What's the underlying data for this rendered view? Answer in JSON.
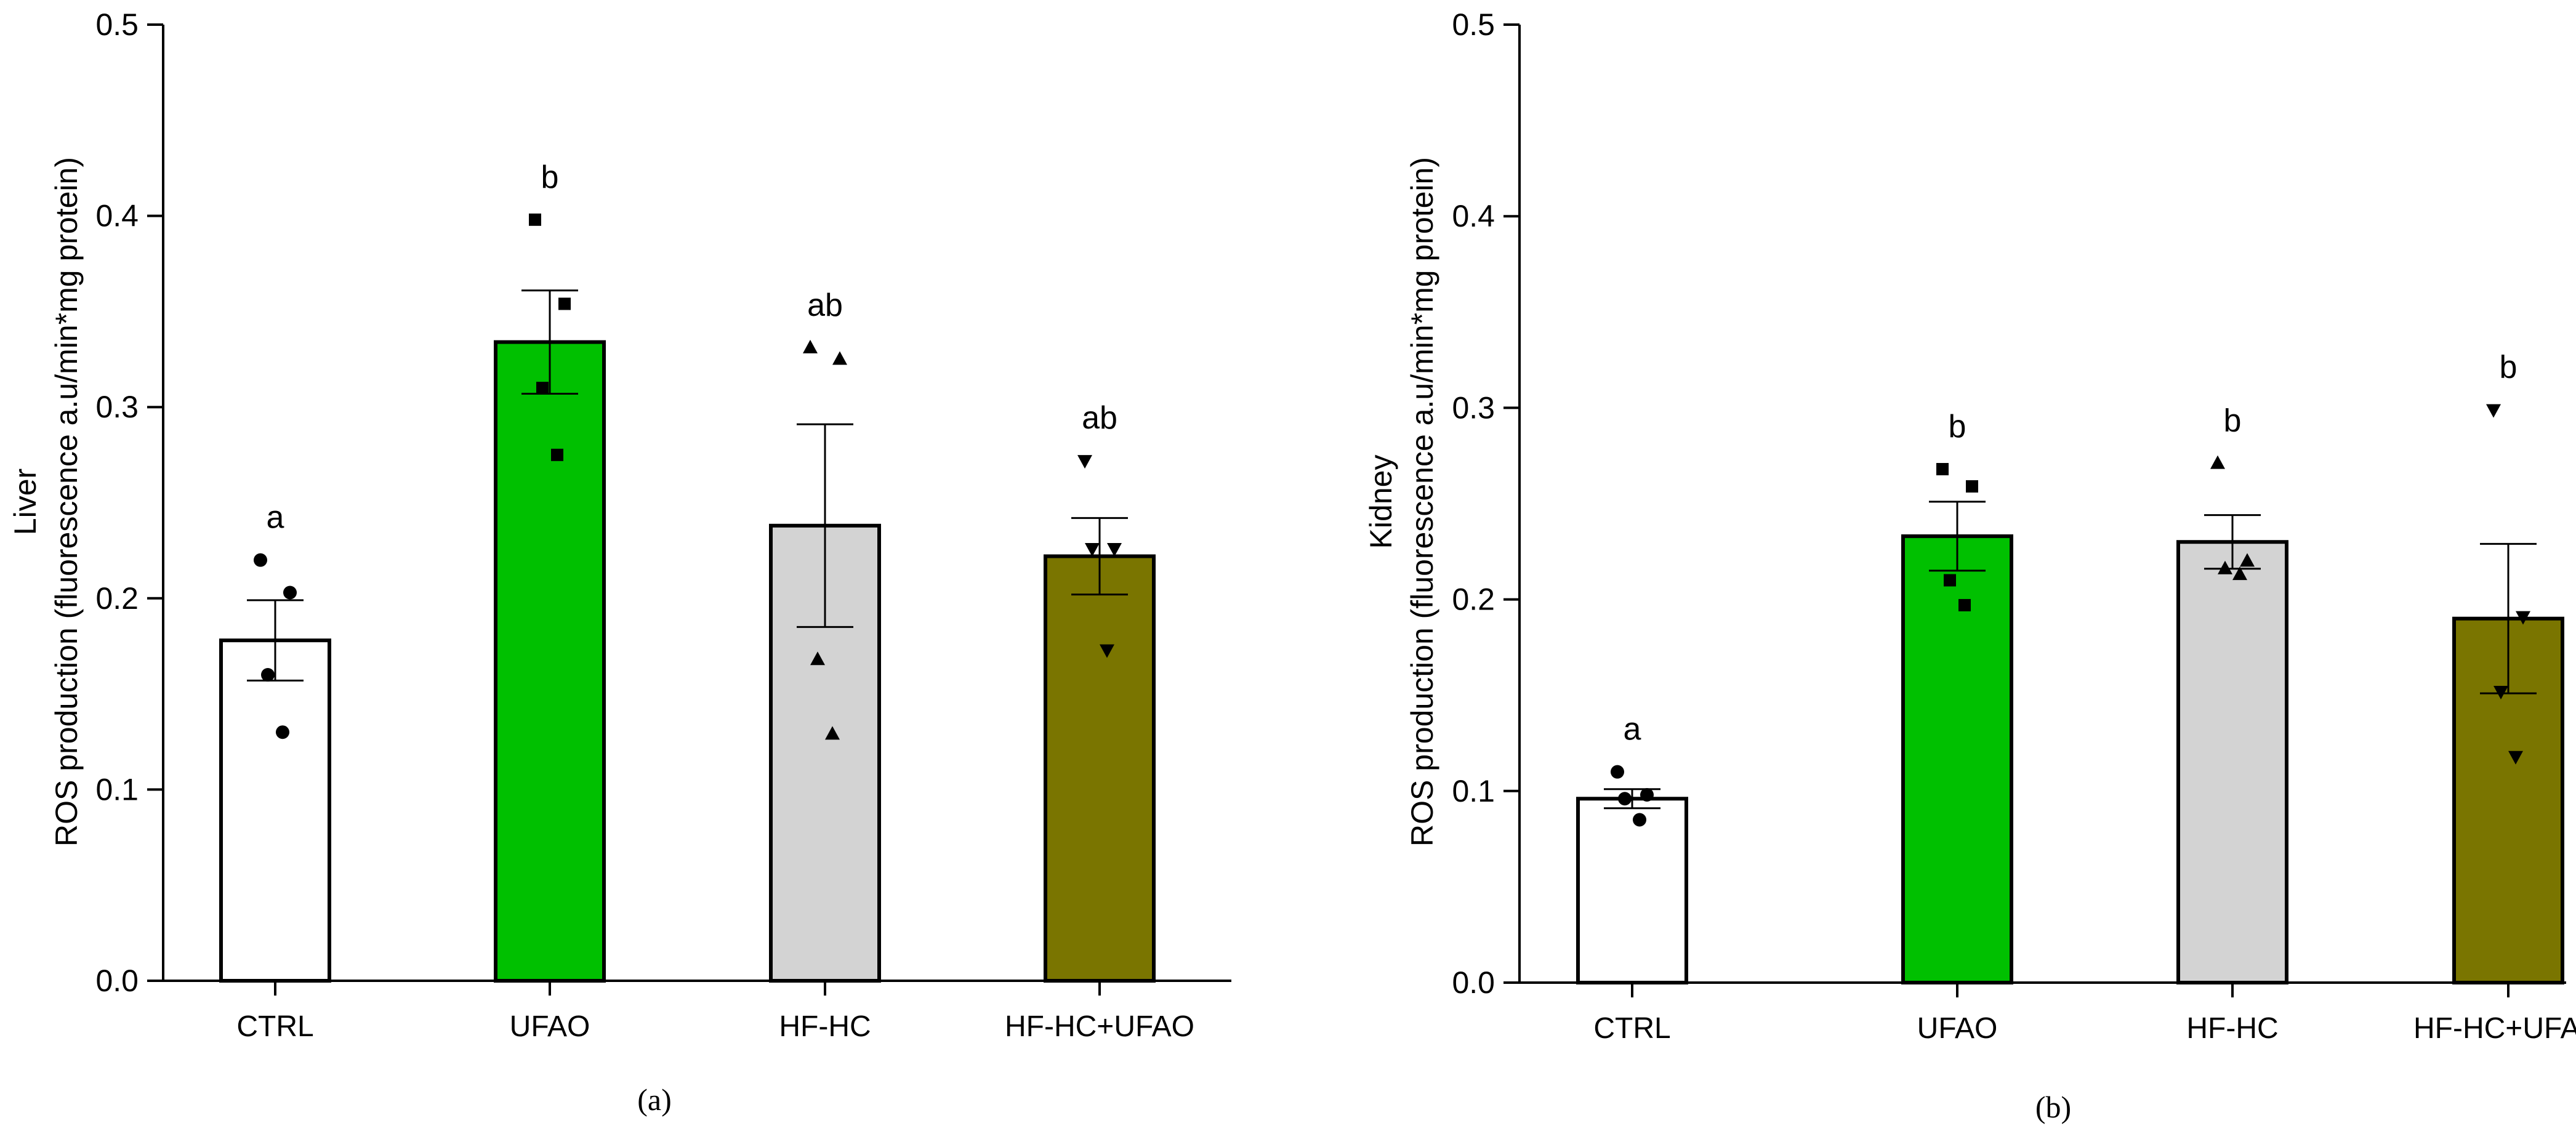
{
  "colors": {
    "CTRL": "#ffffff",
    "UFAO": "#00c000",
    "HF-HC": "#d3d3d3",
    "HF-HC+UFAO": "#7a7500"
  },
  "chart_data": [
    {
      "type": "bar",
      "panel": "(a)",
      "tissue": "Liver",
      "ylabel": "ROS production (fluorescence a.u/min*mg protein)",
      "ylim": [
        0,
        0.5
      ],
      "yticks": [
        "0.0",
        "0.1",
        "0.2",
        "0.3",
        "0.4",
        "0.5"
      ],
      "categories": [
        "CTRL",
        "UFAO",
        "HF-HC",
        "HF-HC+UFAO"
      ],
      "values": [
        0.178,
        0.334,
        0.238,
        0.222
      ],
      "sem": [
        0.021,
        0.027,
        0.053,
        0.02
      ],
      "letters": [
        "a",
        "b",
        "ab",
        "ab"
      ],
      "markers": [
        "circle",
        "square",
        "triangle",
        "triangle-down"
      ],
      "points": [
        [
          0.22,
          0.203,
          0.16,
          0.13
        ],
        [
          0.398,
          0.354,
          0.31,
          0.275
        ],
        [
          0.331,
          0.325,
          0.168,
          0.129
        ],
        [
          0.272,
          0.226,
          0.226,
          0.173
        ]
      ]
    },
    {
      "type": "bar",
      "panel": "(b)",
      "tissue": "Kidney",
      "ylabel": "ROS production (fluorescence a.u/min*mg protein)",
      "ylim": [
        0,
        0.5
      ],
      "yticks": [
        "0.0",
        "0.1",
        "0.2",
        "0.3",
        "0.4",
        "0.5"
      ],
      "categories": [
        "CTRL",
        "UFAO",
        "HF-HC",
        "HF-HC+UFAO"
      ],
      "values": [
        0.096,
        0.233,
        0.23,
        0.19
      ],
      "sem": [
        0.005,
        0.018,
        0.014,
        0.039
      ],
      "letters": [
        "a",
        "b",
        "b",
        "b"
      ],
      "markers": [
        "circle",
        "square",
        "triangle",
        "triangle-down"
      ],
      "points": [
        [
          0.11,
          0.098,
          0.096,
          0.085
        ],
        [
          0.268,
          0.259,
          0.21,
          0.197
        ],
        [
          0.271,
          0.22,
          0.216,
          0.213
        ],
        [
          0.299,
          0.191,
          0.152,
          0.118
        ]
      ]
    }
  ]
}
